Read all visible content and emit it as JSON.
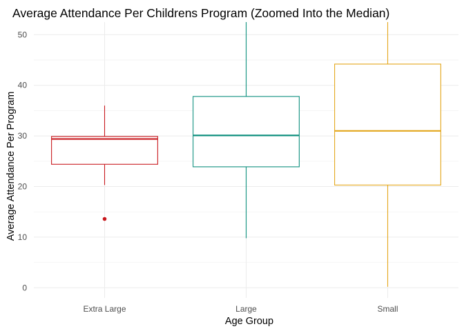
{
  "chart_data": {
    "type": "boxplot",
    "title": "Average Attendance Per Childrens Program (Zoomed Into the Median)",
    "xlabel": "Age Group",
    "ylabel": "Average Attendance Per Program",
    "ylim": [
      -2,
      52.5
    ],
    "yticks": [
      0,
      10,
      20,
      30,
      40,
      50
    ],
    "yticks_minor": [
      5,
      15,
      25,
      35,
      45
    ],
    "grid": true,
    "legend": "none",
    "categories": [
      "Extra Large",
      "Large",
      "Small"
    ],
    "boxes": [
      {
        "category": "Extra Large",
        "color": "#c8171c",
        "whisker_low": 20.3,
        "q1": 24.4,
        "median": 29.4,
        "q3": 29.9,
        "whisker_high": 36.0,
        "outliers": [
          13.6
        ]
      },
      {
        "category": "Large",
        "color": "#0d8f7e",
        "whisker_low": 9.8,
        "q1": 23.9,
        "median": 30.1,
        "q3": 37.8,
        "whisker_high": 52.5,
        "outliers": []
      },
      {
        "category": "Small",
        "color": "#e3a619",
        "whisker_low": 0.2,
        "q1": 20.3,
        "median": 31.0,
        "q3": 44.2,
        "whisker_high": 52.5,
        "outliers": []
      }
    ]
  }
}
